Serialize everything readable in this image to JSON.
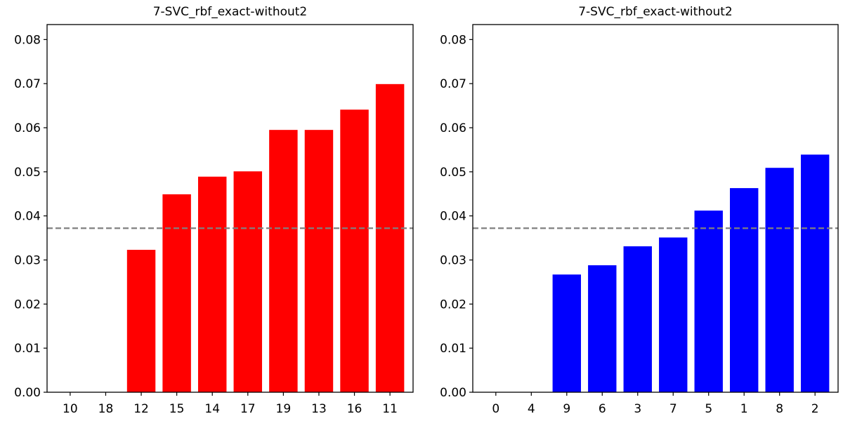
{
  "chart_data": [
    {
      "type": "bar",
      "title": "7-SVC_rbf_exact-without2",
      "categories": [
        "10",
        "18",
        "12",
        "15",
        "14",
        "17",
        "19",
        "13",
        "16",
        "11"
      ],
      "values": [
        0.0,
        0.0,
        0.0323,
        0.0449,
        0.0489,
        0.0501,
        0.0595,
        0.0595,
        0.0641,
        0.0699
      ],
      "bar_color": "#ff0000",
      "reference_line": {
        "value": 0.0372,
        "color": "#808080",
        "style": "dashed"
      },
      "ylim": [
        0,
        0.0834
      ],
      "yticks": [
        "0.00",
        "0.01",
        "0.02",
        "0.03",
        "0.04",
        "0.05",
        "0.06",
        "0.07",
        "0.08"
      ],
      "xlabel": "",
      "ylabel": "",
      "grid": false
    },
    {
      "type": "bar",
      "title": "7-SVC_rbf_exact-without2",
      "categories": [
        "0",
        "4",
        "9",
        "6",
        "3",
        "7",
        "5",
        "1",
        "8",
        "2"
      ],
      "values": [
        0.0,
        0.0,
        0.0267,
        0.0288,
        0.0331,
        0.0351,
        0.0412,
        0.0463,
        0.0509,
        0.0539
      ],
      "bar_color": "#0000ff",
      "reference_line": {
        "value": 0.0372,
        "color": "#808080",
        "style": "dashed"
      },
      "ylim": [
        0,
        0.0834
      ],
      "yticks": [
        "0.00",
        "0.01",
        "0.02",
        "0.03",
        "0.04",
        "0.05",
        "0.06",
        "0.07",
        "0.08"
      ],
      "xlabel": "",
      "ylabel": "",
      "grid": false
    }
  ]
}
